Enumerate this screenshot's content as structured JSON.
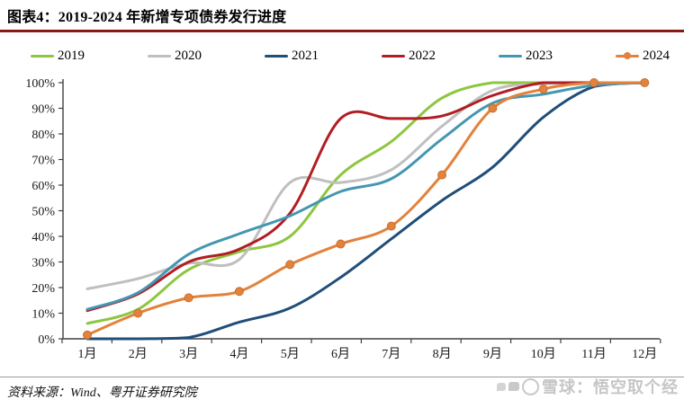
{
  "header": {
    "title": "图表4：2019-2024 年新增专项债券发行进度"
  },
  "footer": {
    "source": "资料来源：Wind、粤开证券研究院",
    "watermark": "雪球：悟空取个经"
  },
  "colors": {
    "title_rule": "#8a1912",
    "axis": "#404040",
    "footer_rule": "#9a9a9a",
    "watermark": "#c6c6c6"
  },
  "chart_data": {
    "type": "line",
    "title": "图表4：2019-2024 年新增专项债券发行进度",
    "xlabel": "",
    "ylabel": "",
    "ylim": [
      0,
      100
    ],
    "y_tick_step": 10,
    "y_tick_labels": [
      "0%",
      "10%",
      "20%",
      "30%",
      "40%",
      "50%",
      "60%",
      "70%",
      "80%",
      "90%",
      "100%"
    ],
    "grid": false,
    "legend_position": "top",
    "categories": [
      "1月",
      "2月",
      "3月",
      "4月",
      "5月",
      "6月",
      "7月",
      "8月",
      "9月",
      "10月",
      "11月",
      "12月"
    ],
    "series": [
      {
        "name": "2019",
        "color": "#8dc63f",
        "marker": false,
        "values": [
          6,
          11.5,
          27,
          34,
          40,
          64,
          77,
          94,
          100,
          100,
          100,
          100
        ]
      },
      {
        "name": "2020",
        "color": "#bfbfbf",
        "marker": false,
        "values": [
          19.5,
          23.5,
          29.5,
          31,
          61,
          61,
          66,
          83,
          97,
          99.5,
          100,
          100
        ]
      },
      {
        "name": "2021",
        "color": "#1f4e79",
        "marker": false,
        "values": [
          0,
          0,
          0.5,
          6.5,
          12,
          24,
          39,
          54,
          67,
          86.5,
          98.5,
          100
        ]
      },
      {
        "name": "2022",
        "color": "#b01e23",
        "marker": false,
        "values": [
          11,
          17.5,
          30,
          35,
          49,
          86,
          86,
          87,
          95,
          100,
          100,
          100
        ]
      },
      {
        "name": "2023",
        "color": "#4496b2",
        "marker": false,
        "values": [
          11.5,
          18,
          33,
          41,
          48,
          57.5,
          62.5,
          78,
          92,
          95.5,
          99,
          100
        ]
      },
      {
        "name": "2024",
        "color": "#e2823c",
        "marker": true,
        "values": [
          1.5,
          10,
          16,
          18.5,
          29,
          37,
          44,
          64,
          90,
          97.5,
          100,
          100
        ]
      }
    ]
  }
}
